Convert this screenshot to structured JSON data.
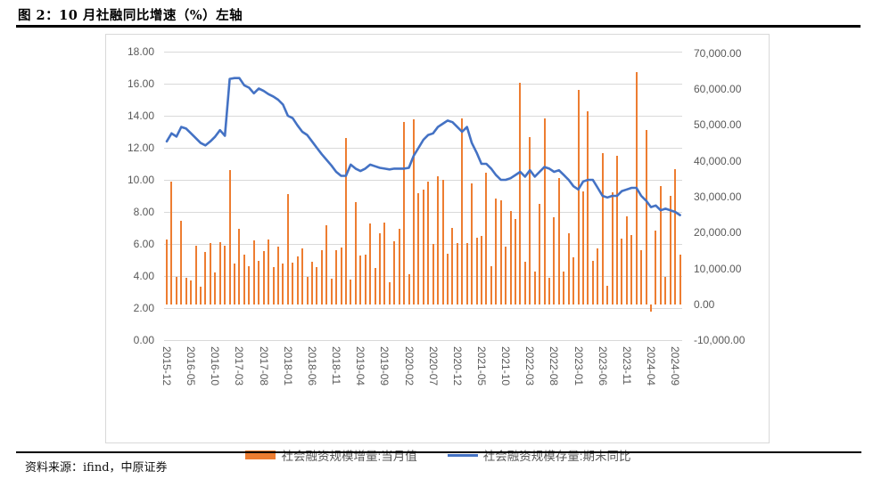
{
  "figure": {
    "title": "图 2：10 月社融同比增速（%）左轴",
    "source_note": "资料来源：ifind，中原证券"
  },
  "colors": {
    "bar": "#ED7D31",
    "line": "#4472C4",
    "grid": "#d9d9d9",
    "axis_text": "#595959",
    "rule": "#000000"
  },
  "chart_data": {
    "type": "combo (bar + line)",
    "title": "图 2：10 月社融同比增速（%）左轴",
    "grid": "horizontal",
    "legend_position": "bottom",
    "categories": [
      "2015-12",
      "2016-01",
      "2016-02",
      "2016-03",
      "2016-04",
      "2016-05",
      "2016-06",
      "2016-07",
      "2016-08",
      "2016-09",
      "2016-10",
      "2016-11",
      "2016-12",
      "2017-01",
      "2017-02",
      "2017-03",
      "2017-04",
      "2017-05",
      "2017-06",
      "2017-07",
      "2017-08",
      "2017-09",
      "2017-10",
      "2017-11",
      "2017-12",
      "2018-01",
      "2018-02",
      "2018-03",
      "2018-04",
      "2018-05",
      "2018-06",
      "2018-07",
      "2018-08",
      "2018-09",
      "2018-10",
      "2018-11",
      "2018-12",
      "2019-01",
      "2019-02",
      "2019-03",
      "2019-04",
      "2019-05",
      "2019-06",
      "2019-07",
      "2019-08",
      "2019-09",
      "2019-10",
      "2019-11",
      "2019-12",
      "2020-01",
      "2020-02",
      "2020-03",
      "2020-04",
      "2020-05",
      "2020-06",
      "2020-07",
      "2020-08",
      "2020-09",
      "2020-10",
      "2020-11",
      "2020-12",
      "2021-01",
      "2021-02",
      "2021-03",
      "2021-04",
      "2021-05",
      "2021-06",
      "2021-07",
      "2021-08",
      "2021-09",
      "2021-10",
      "2021-11",
      "2021-12",
      "2022-01",
      "2022-02",
      "2022-03",
      "2022-04",
      "2022-05",
      "2022-06",
      "2022-07",
      "2022-08",
      "2022-09",
      "2022-10",
      "2022-11",
      "2022-12",
      "2023-01",
      "2023-02",
      "2023-03",
      "2023-04",
      "2023-05",
      "2023-06",
      "2023-07",
      "2023-08",
      "2023-09",
      "2023-10",
      "2023-11",
      "2023-12",
      "2024-01",
      "2024-02",
      "2024-03",
      "2024-04",
      "2024-05",
      "2024-06",
      "2024-07",
      "2024-08",
      "2024-09",
      "2024-10"
    ],
    "x_tick_labels": [
      "2015-12",
      "2016-05",
      "2016-10",
      "2017-03",
      "2017-08",
      "2018-01",
      "2018-06",
      "2018-11",
      "2019-04",
      "2019-09",
      "2020-02",
      "2020-07",
      "2020-12",
      "2021-05",
      "2021-10",
      "2022-03",
      "2022-08",
      "2023-01",
      "2023-06",
      "2023-11",
      "2024-04",
      "2024-09"
    ],
    "x_tick_every": 5,
    "series": [
      {
        "name": "社会融资规模增量:当月值",
        "type": "bar",
        "axis": "right",
        "color": "#ED7D31",
        "values": [
          18200,
          34200,
          7802,
          23400,
          7510,
          6599,
          16293,
          4879,
          14700,
          17200,
          8963,
          17400,
          16300,
          37400,
          11500,
          21200,
          13900,
          10600,
          17800,
          12200,
          14800,
          18200,
          10400,
          16000,
          11400,
          30800,
          11700,
          13300,
          15600,
          7608,
          11800,
          10400,
          15200,
          22100,
          7288,
          15200,
          15900,
          46400,
          7030,
          28600,
          13600,
          14000,
          22600,
          10100,
          19800,
          22700,
          6189,
          17500,
          21030,
          50700,
          8554,
          51600,
          30900,
          31900,
          34300,
          16900,
          35800,
          34800,
          14200,
          21300,
          17200,
          51700,
          17100,
          33700,
          18500,
          19200,
          36700,
          10600,
          29600,
          29000,
          16200,
          26100,
          23700,
          61700,
          11900,
          46500,
          9102,
          27900,
          51700,
          7561,
          24300,
          35300,
          9079,
          19900,
          13100,
          59800,
          31600,
          53800,
          12200,
          15600,
          42200,
          5282,
          31200,
          41300,
          18400,
          24500,
          19400,
          64700,
          15200,
          48700,
          -1987,
          20600,
          32900,
          7708,
          30300,
          37600,
          13958
        ]
      },
      {
        "name": "社会融资规模存量:期末同比",
        "type": "line",
        "axis": "left",
        "color": "#4472C4",
        "values": [
          12.4,
          12.9,
          12.7,
          13.3,
          13.2,
          12.9,
          12.6,
          12.3,
          12.15,
          12.4,
          12.7,
          13.1,
          12.75,
          16.3,
          16.35,
          16.35,
          15.9,
          15.75,
          15.4,
          15.7,
          15.55,
          15.35,
          15.2,
          15.0,
          14.7,
          14.0,
          13.85,
          13.4,
          13.0,
          12.8,
          12.4,
          12.0,
          11.6,
          11.25,
          10.9,
          10.5,
          10.25,
          10.25,
          10.95,
          10.7,
          10.55,
          10.7,
          10.95,
          10.85,
          10.75,
          10.7,
          10.65,
          10.7,
          10.7,
          10.7,
          10.75,
          11.5,
          12.0,
          12.5,
          12.8,
          12.9,
          13.3,
          13.5,
          13.7,
          13.6,
          13.3,
          13.0,
          13.3,
          12.3,
          11.7,
          11.0,
          11.0,
          10.7,
          10.3,
          10.0,
          10.0,
          10.1,
          10.3,
          10.5,
          10.2,
          10.6,
          10.2,
          10.5,
          10.8,
          10.7,
          10.5,
          10.6,
          10.3,
          10.0,
          9.6,
          9.4,
          9.9,
          10.0,
          10.0,
          9.5,
          9.0,
          8.9,
          9.0,
          9.0,
          9.3,
          9.4,
          9.5,
          9.5,
          9.0,
          8.7,
          8.3,
          8.4,
          8.1,
          8.2,
          8.1,
          8.0,
          7.8
        ]
      }
    ],
    "left_axis": {
      "min": 0,
      "max": 18,
      "step": 2,
      "ticks": [
        "0.00",
        "2.00",
        "4.00",
        "6.00",
        "8.00",
        "10.00",
        "12.00",
        "14.00",
        "16.00",
        "18.00"
      ]
    },
    "right_axis": {
      "min": -10000,
      "max": 70000,
      "step": 10000,
      "ticks": [
        "-10,000.00",
        "0.00",
        "10,000.00",
        "20,000.00",
        "30,000.00",
        "40,000.00",
        "50,000.00",
        "60,000.00",
        "70,000.00"
      ]
    }
  }
}
